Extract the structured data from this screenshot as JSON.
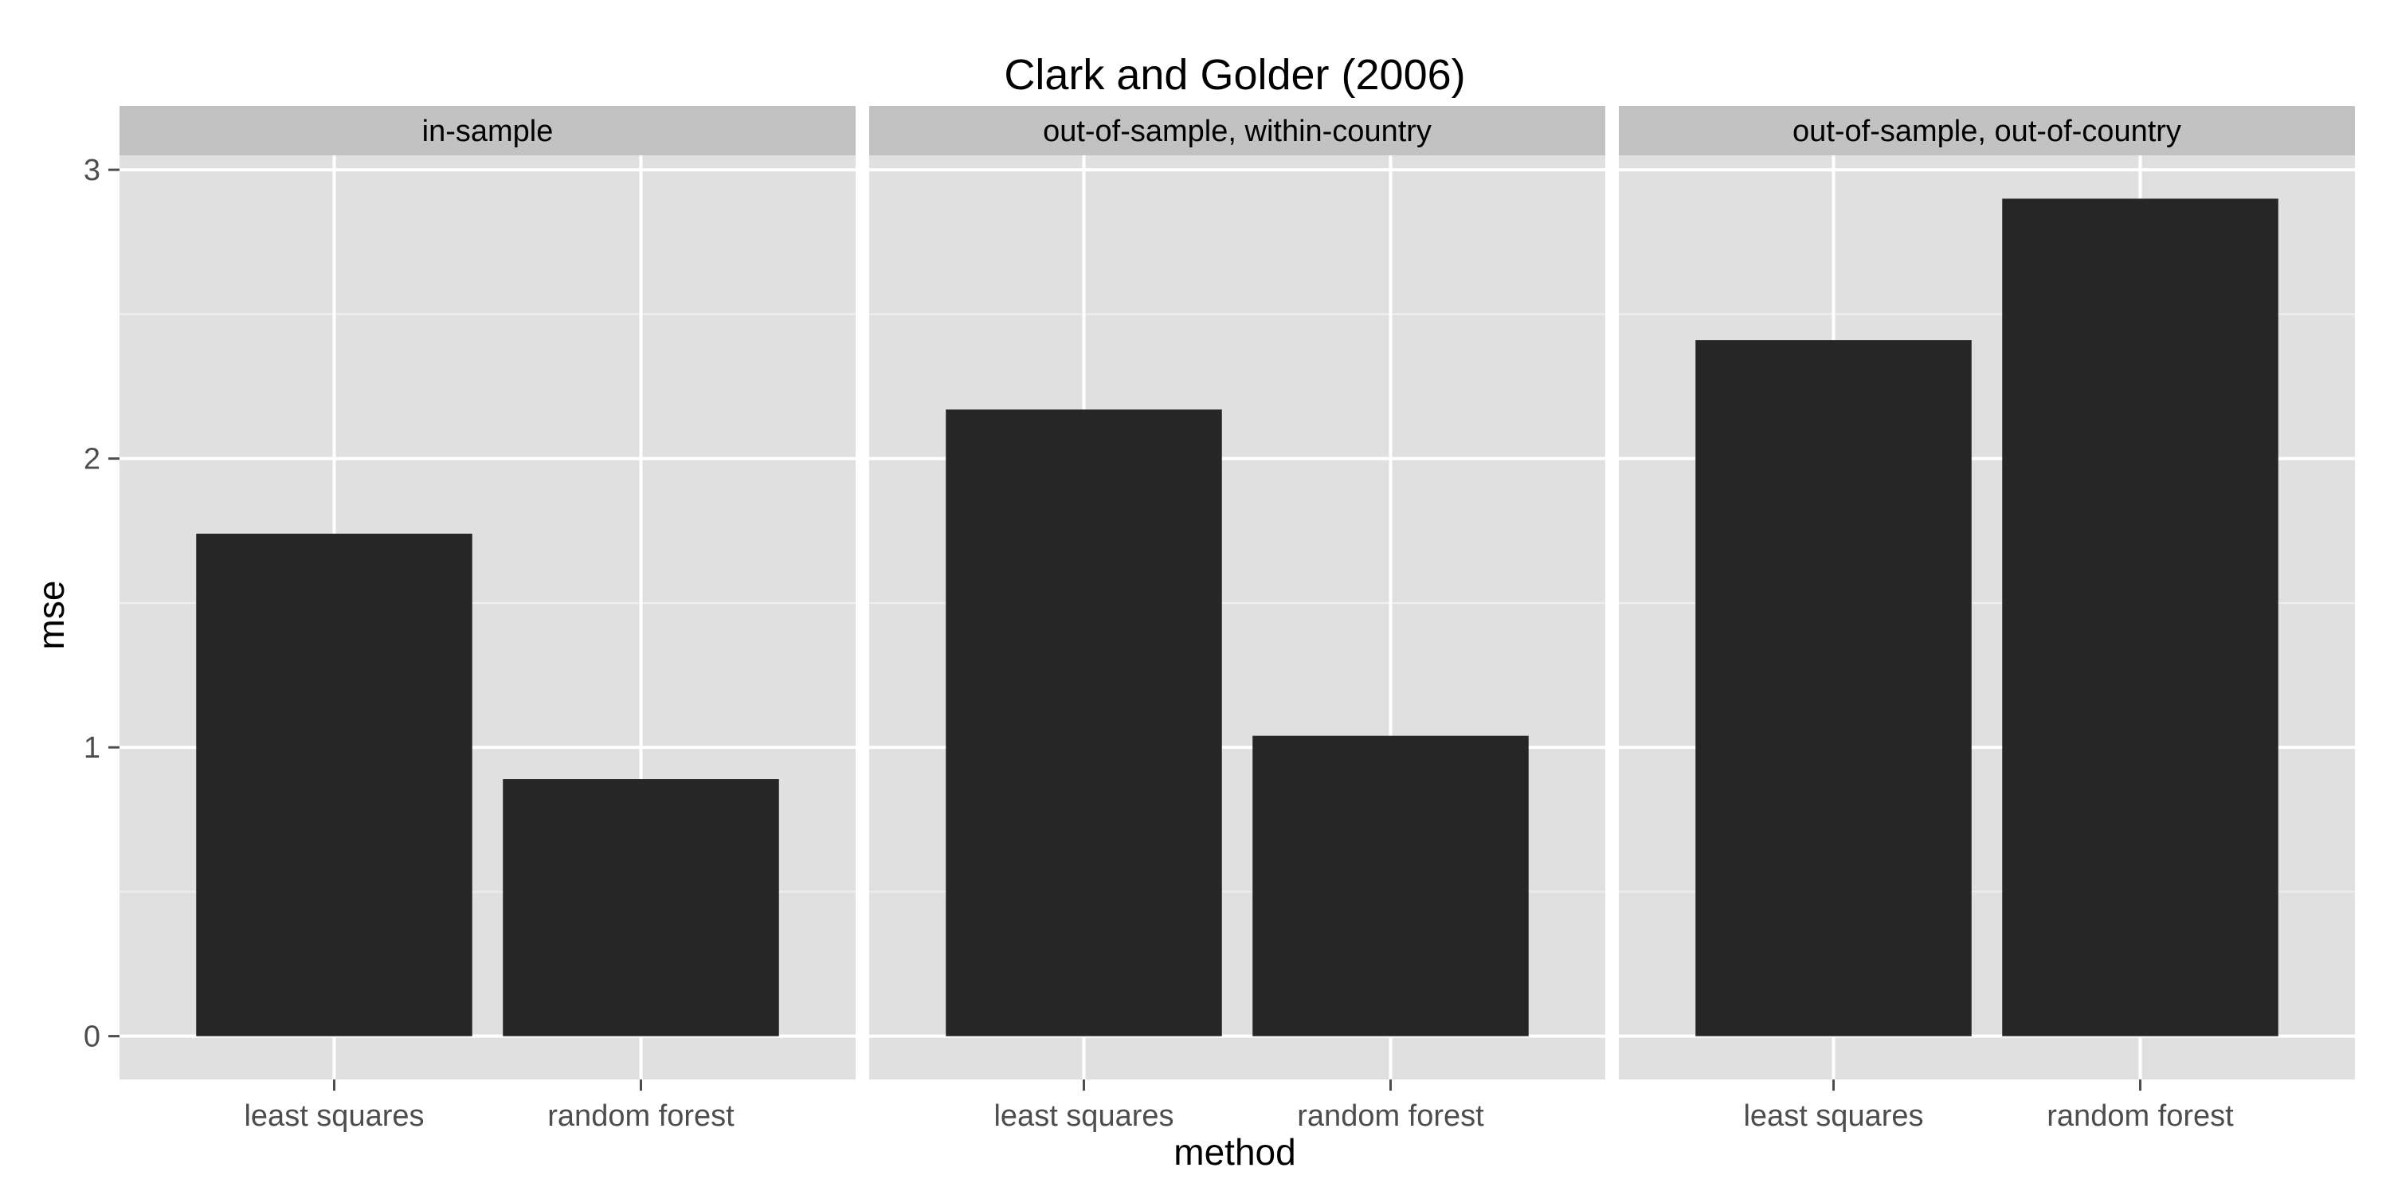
{
  "chart_data": {
    "type": "bar",
    "title": "Clark and Golder (2006)",
    "xlabel": "method",
    "ylabel": "mse",
    "ylim": [
      -0.15,
      3.05
    ],
    "yticks": [
      0,
      1,
      2,
      3
    ],
    "categories": [
      "least squares",
      "random forest"
    ],
    "bar_color": "#262626",
    "panel_bg": "#e0e0e0",
    "strip_bg": "#c2c2c2",
    "grid": true,
    "facets": [
      {
        "label": "in-sample",
        "values": [
          1.74,
          0.89
        ]
      },
      {
        "label": "out-of-sample, within-country",
        "values": [
          2.17,
          1.04
        ]
      },
      {
        "label": "out-of-sample, out-of-country",
        "values": [
          2.41,
          2.9
        ]
      }
    ]
  }
}
